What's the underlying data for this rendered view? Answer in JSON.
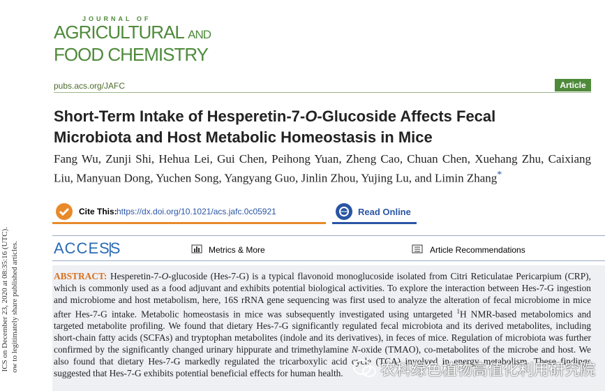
{
  "journal": {
    "top": "JOURNAL OF",
    "line1": "AGRICULTURAL",
    "and": "AND",
    "line2": "FOOD CHEMISTRY",
    "url": "pubs.acs.org/JAFC",
    "badge": "Article"
  },
  "title": [
    "Short-Term Intake of Hesperetin-7-",
    "O",
    "-Glucoside Affects Fecal Microbiota and Host Metabolic Homeostasis in Mice"
  ],
  "authors": {
    "names": "Fang Wu, Zunji Shi, Hehua Lei, Gui Chen, Peihong Yuan, Zheng Cao, Chuan Chen, Xuehang Zhu, Caixiang Liu, Manyuan Dong, Yuchen Song, Yangyang Guo, Jinlin Zhou, Yujing Lu, and Limin Zhang",
    "mark": "*"
  },
  "cite": {
    "label": "Cite This:",
    "doi": "https://dx.doi.org/10.1021/acs.jafc.0c05921"
  },
  "read_online": "Read Online",
  "access": {
    "label": "ACCESS",
    "metrics": "Metrics & More",
    "recommendations": "Article Recommendations"
  },
  "abstract": {
    "label": "ABSTRACT:",
    "segments": [
      "Hesperetin-7-",
      "O",
      "-glucoside (Hes-7-G) is a typical flavonoid monoglucoside isolated from Citri Reticulatae Pericarpium (CRP), which is commonly used as a food adjuvant and exhibits potential biological activities. To explore the interaction between Hes-7-G ingestion and microbiome and host metabolism, here, 16S rRNA gene sequencing was first used to analyze the alteration of fecal microbiome in mice after Hes-7-G intake. Metabolic homeostasis in mice was subsequently investigated using untargeted ",
      "1",
      "H NMR-based metabolomics and targeted metabolite profiling. We found that dietary Hes-7-G significantly regulated fecal microbiota and its derived metabolites, including short-chain fatty acids (SCFAs) and tryptophan metabolites (indole and its derivatives), in feces of mice. Regulation of microbiota was further confirmed by the significantly changed urinary hippurate and trimethylamine ",
      "N",
      "-oxide (TMAO), co-metabolites of the microbe and host. We also found that dietary Hes-7-G markedly regulated the tricarboxylic acid cycle (TCA) involved in energy metabolism. These findings suggested that Hes-7-G exhibits potential beneficial effects for human health."
    ]
  },
  "side_note": [
    "ICS on December 23, 2020 at 08:35:16 (UTC).",
    "ow to legitimately share published articles."
  ],
  "watermark": "农科绿色植物高值化利用研究院"
}
